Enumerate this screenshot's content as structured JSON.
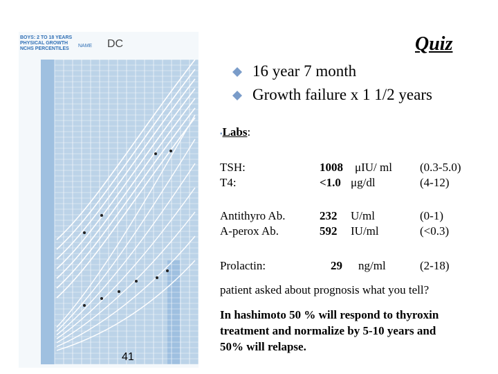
{
  "slide": {
    "title": "Quiz",
    "bullets": [
      "16 year 7 month",
      "Growth failure x 1 1/2 years"
    ],
    "labs_heading": "Labs",
    "labs_colon": ":",
    "labs": [
      {
        "name": "TSH:",
        "value": "1008",
        "unit": "μIU/ ml",
        "range": "(0.3-5.0)"
      },
      {
        "name": "T4:",
        "value": "<1.0",
        "unit": "μg/dl",
        "range": "(4-12)"
      },
      {
        "name": "Antithyro Ab.",
        "value": "232",
        "unit": "U/ml",
        "range": "(0-1)"
      },
      {
        "name": "A-perox Ab.",
        "value": "592",
        "unit": "IU/ml",
        "range": "(<0.3)"
      },
      {
        "name": "Prolactin:",
        "value": "29",
        "unit": "ng/ml",
        "range": "(2-18)"
      }
    ],
    "question": "patient asked about prognosis what  you tell?",
    "answer": [
      "In hashimoto 50 % will respond to thyroxin",
      "treatment and normalize by 5-10 years and",
      "50% will relapse."
    ],
    "page_number": "41",
    "chart_image": {
      "header": [
        "BOYS: 2 TO 18 YEARS",
        "PHYSICAL GROWTH",
        "NCHS PERCENTILES"
      ],
      "name_label": "NAME",
      "patient": "DC"
    }
  }
}
